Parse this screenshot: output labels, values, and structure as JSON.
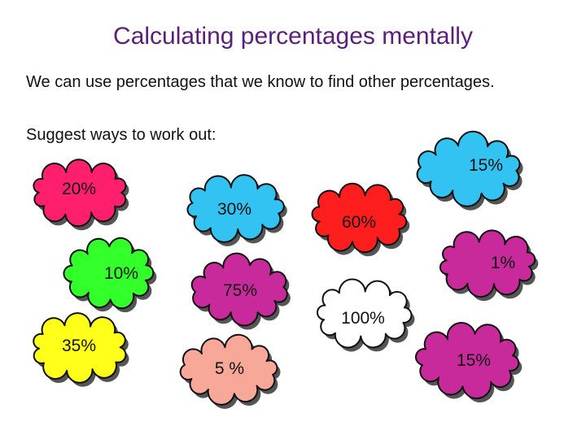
{
  "slide": {
    "title": "Calculating percentages mentally",
    "intro": "We can use percentages that we know to find other percentages.",
    "prompt": "Suggest ways to work out:"
  },
  "colors": {
    "title": "#5b1f7a",
    "pink": "#ff1f6d",
    "blue": "#33c3f2",
    "red": "#ff1e1e",
    "green": "#33ff2a",
    "magenta": "#c92a9b",
    "yellow": "#ffff1a",
    "salmon": "#f7a898",
    "white": "#ffffff"
  },
  "clouds": [
    {
      "label": "20%",
      "color": "pink"
    },
    {
      "label": "30%",
      "color": "blue"
    },
    {
      "label": "60%",
      "color": "red"
    },
    {
      "label": "15%",
      "color": "blue"
    },
    {
      "label": "10%",
      "color": "green"
    },
    {
      "label": "75%",
      "color": "magenta"
    },
    {
      "label": "1%",
      "color": "magenta"
    },
    {
      "label": "100%",
      "color": "white"
    },
    {
      "label": "35%",
      "color": "yellow"
    },
    {
      "label": "5 %",
      "color": "salmon"
    },
    {
      "label": "15%",
      "color": "magenta"
    }
  ]
}
